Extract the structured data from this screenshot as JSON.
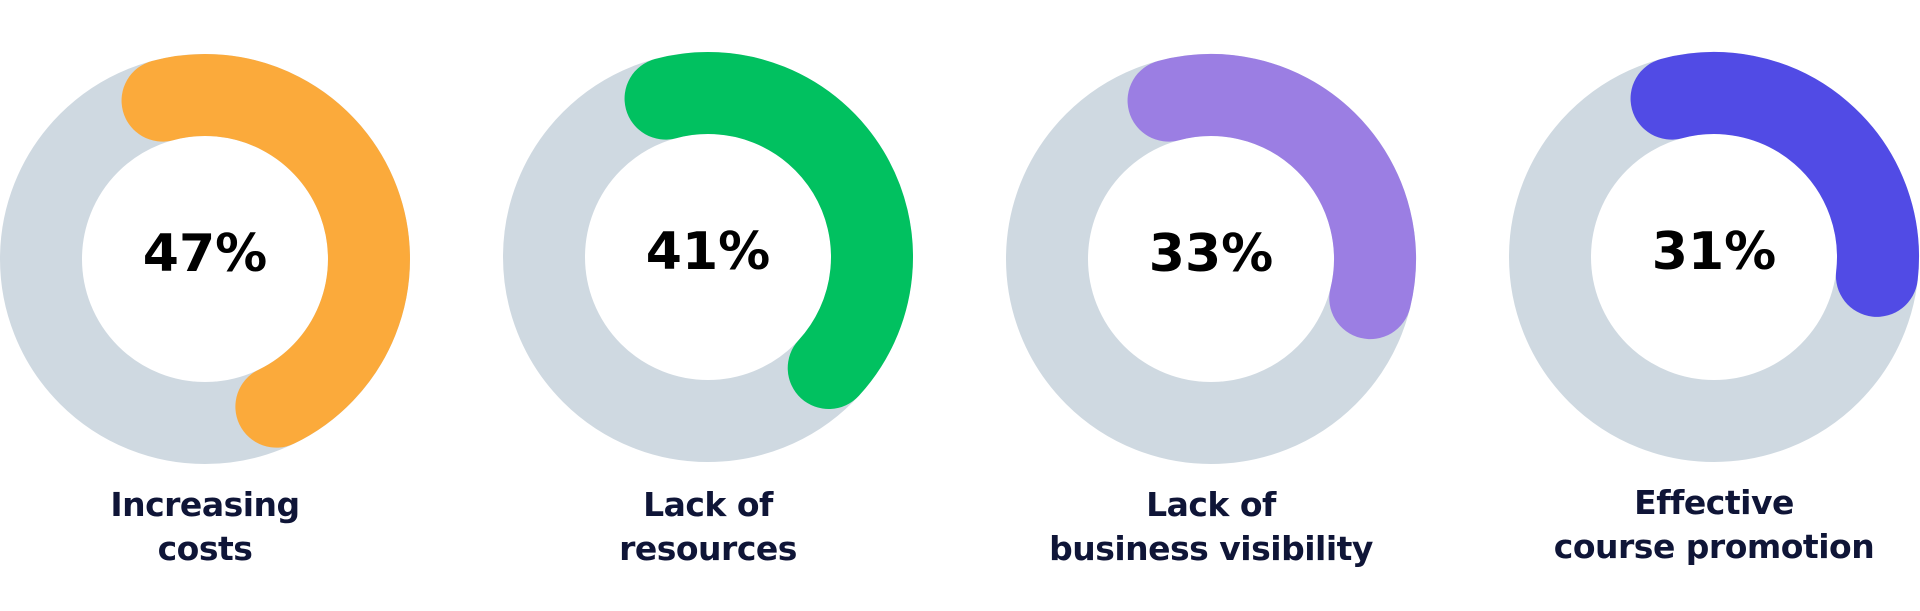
{
  "chart_data": [
    {
      "type": "donut",
      "value": 47,
      "value_label": "47%",
      "color": "#FBAA3B",
      "track_color": "#CFD9E1",
      "label_lines": [
        "Increasing",
        "costs"
      ]
    },
    {
      "type": "donut",
      "value": 41,
      "value_label": "41%",
      "color": "#01C160",
      "track_color": "#CFD9E1",
      "label_lines": [
        "Lack of",
        "resources"
      ]
    },
    {
      "type": "donut",
      "value": 33,
      "value_label": "33%",
      "color": "#9B7EE3",
      "track_color": "#CFD9E1",
      "label_lines": [
        "Lack of",
        "business visibility"
      ]
    },
    {
      "type": "donut",
      "value": 31,
      "value_label": "31%",
      "color": "#514BE5",
      "track_color": "#CFD9E1",
      "label_lines": [
        "Effective",
        "course promotion"
      ]
    }
  ]
}
